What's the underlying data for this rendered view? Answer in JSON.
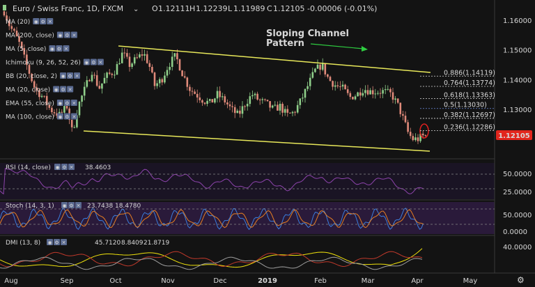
{
  "header": {
    "symbol": "Euro / Swiss Franc, 1D, FXCM",
    "ohlc": {
      "o_label": "O",
      "o": "1.12111",
      "h_label": "H",
      "h": "1.12239",
      "l_label": "L",
      "l": "1.11989",
      "c_label": "C",
      "c": "1.12105",
      "chg": "-0.00006 (-0.01%)"
    }
  },
  "indicators_overlay": [
    {
      "label": "MA (20)"
    },
    {
      "label": "MA (200, close)"
    },
    {
      "label": "MA (5, close)"
    },
    {
      "label": "Ichimoku (9, 26, 52, 26)"
    },
    {
      "label": "BB (20, close, 2)"
    },
    {
      "label": "MA (20, close)"
    },
    {
      "label": "EMA (55, close)"
    },
    {
      "label": "MA (100, close)"
    }
  ],
  "annotation": {
    "line1": "Sloping Channel",
    "line2": "Pattern"
  },
  "fib_levels": [
    {
      "label": "0.886(1.14119)",
      "value": 1.14119,
      "color": "#dddddd"
    },
    {
      "label": "0.764(1.13774)",
      "value": 1.13774,
      "color": "#dddddd"
    },
    {
      "label": "0.618(1.13363)",
      "value": 1.13363,
      "color": "#dddddd"
    },
    {
      "label": "0.5(1.13030)",
      "value": 1.1303,
      "color": "#6f8fe0"
    },
    {
      "label": "0.382(1.12697)",
      "value": 1.12697,
      "color": "#dddddd"
    },
    {
      "label": "0.236(1.12286)",
      "value": 1.12286,
      "color": "#dddddd"
    }
  ],
  "price_axis": {
    "ticks": [
      "1.16000",
      "1.15000",
      "1.14000",
      "1.13000"
    ],
    "tick_values": [
      1.16,
      1.15,
      1.14,
      1.13
    ],
    "last_price": "1.12105",
    "last_value": 1.12105
  },
  "rsi": {
    "label": "RSI (14, close)",
    "value": "38.4603",
    "ticks": [
      "50.0000",
      "25.0000"
    ],
    "tick_values": [
      50,
      25
    ]
  },
  "stoch": {
    "label": "Stoch (14, 3, 1)",
    "k": "23.7438",
    "d": "18.4780",
    "ticks": [
      "50.0000",
      "0.0000"
    ],
    "tick_values": [
      50,
      0
    ]
  },
  "dmi": {
    "label": "DMI (13, 8)",
    "adx": "45.7120",
    "di_plus": "8.8409",
    "di_minus": "21.8719",
    "ticks": [
      "40.0000"
    ],
    "tick_values": [
      40
    ]
  },
  "time_axis": {
    "labels": [
      "Aug",
      "Sep",
      "Oct",
      "Nov",
      "Dec",
      "2019",
      "Feb",
      "Mar",
      "Apr",
      "May"
    ]
  },
  "colors": {
    "up": "#8fcf8a",
    "down": "#e08a7a",
    "channel": "#e8e85a",
    "annotation_arrow": "#2ecc40",
    "rsi_line": "#8e44ad",
    "stoch_k": "#3b7ddd",
    "stoch_d": "#e67e22",
    "adx": "#f1e30c",
    "di_plus": "#9e9e9e",
    "di_minus": "#c0392b",
    "last_price_bg": "#e2261d"
  },
  "icons": {
    "visibility": "eye-icon",
    "settings": "gear-icon",
    "close": "close-icon",
    "chart_settings": "gear-icon"
  }
}
